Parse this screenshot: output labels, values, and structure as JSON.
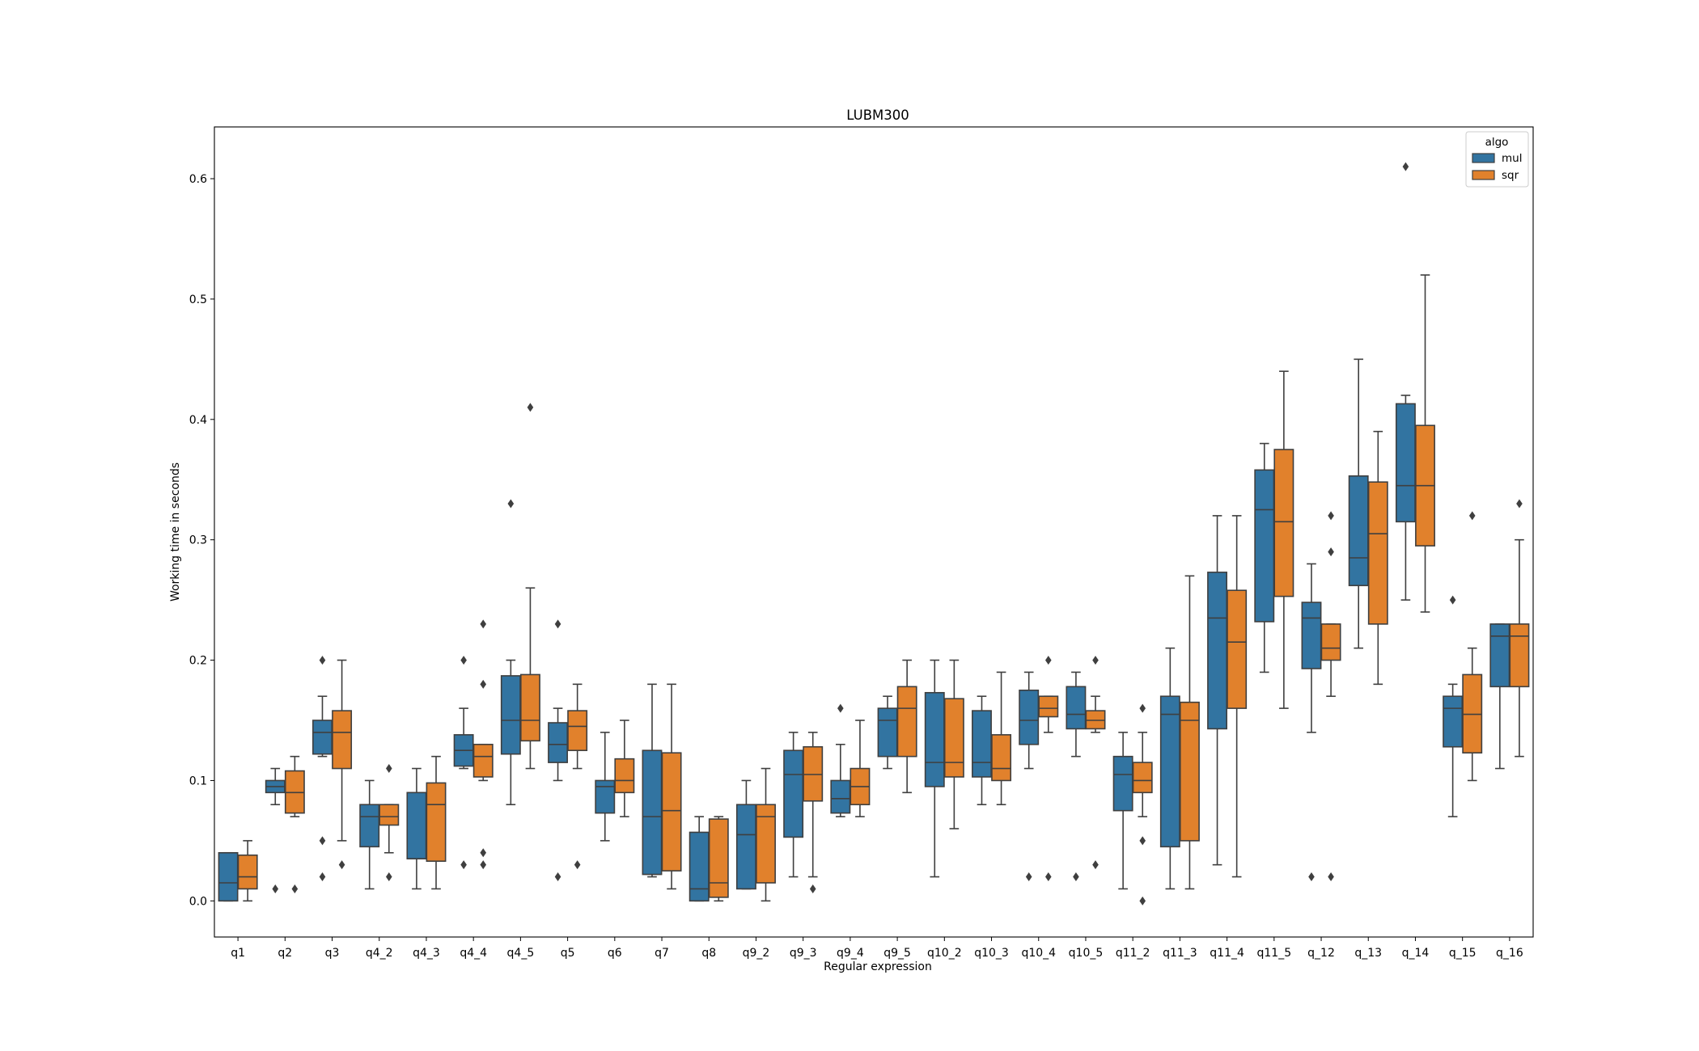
{
  "chart_data": {
    "type": "box",
    "title": "LUBM300",
    "xlabel": "Regular expression",
    "ylabel": "Working time in seconds",
    "ylim": [
      -0.03,
      0.643
    ],
    "yticks": [
      "0.0",
      "0.1",
      "0.2",
      "0.3",
      "0.4",
      "0.5",
      "0.6"
    ],
    "grid": false,
    "legend": {
      "title": "algo",
      "position": "top-right"
    },
    "categories": [
      "q1",
      "q2",
      "q3",
      "q4_2",
      "q4_3",
      "q4_4",
      "q4_5",
      "q5",
      "q6",
      "q7",
      "q8",
      "q9_2",
      "q9_3",
      "q9_4",
      "q9_5",
      "q10_2",
      "q10_3",
      "q10_4",
      "q10_5",
      "q11_2",
      "q11_3",
      "q11_4",
      "q11_5",
      "q_12",
      "q_13",
      "q_14",
      "q_15",
      "q_16"
    ],
    "series": [
      {
        "name": "mul",
        "color": "#3274a1",
        "boxes": [
          {
            "wl": 0.0,
            "q1": 0.0,
            "med": 0.015,
            "q3": 0.04,
            "wh": 0.04,
            "out": []
          },
          {
            "wl": 0.08,
            "q1": 0.09,
            "med": 0.095,
            "q3": 0.1,
            "wh": 0.11,
            "out": [
              0.01
            ]
          },
          {
            "wl": 0.12,
            "q1": 0.122,
            "med": 0.14,
            "q3": 0.15,
            "wh": 0.17,
            "out": [
              0.2,
              0.05,
              0.02
            ]
          },
          {
            "wl": 0.01,
            "q1": 0.045,
            "med": 0.07,
            "q3": 0.08,
            "wh": 0.1,
            "out": []
          },
          {
            "wl": 0.01,
            "q1": 0.035,
            "med": 0.035,
            "q3": 0.09,
            "wh": 0.11,
            "out": []
          },
          {
            "wl": 0.11,
            "q1": 0.112,
            "med": 0.125,
            "q3": 0.138,
            "wh": 0.16,
            "out": [
              0.2,
              0.03
            ]
          },
          {
            "wl": 0.08,
            "q1": 0.122,
            "med": 0.15,
            "q3": 0.187,
            "wh": 0.2,
            "out": [
              0.33
            ]
          },
          {
            "wl": 0.1,
            "q1": 0.115,
            "med": 0.13,
            "q3": 0.148,
            "wh": 0.16,
            "out": [
              0.23,
              0.02
            ]
          },
          {
            "wl": 0.05,
            "q1": 0.073,
            "med": 0.095,
            "q3": 0.1,
            "wh": 0.14,
            "out": []
          },
          {
            "wl": 0.02,
            "q1": 0.022,
            "med": 0.07,
            "q3": 0.125,
            "wh": 0.18,
            "out": []
          },
          {
            "wl": 0.0,
            "q1": 0.0,
            "med": 0.01,
            "q3": 0.057,
            "wh": 0.07,
            "out": []
          },
          {
            "wl": 0.01,
            "q1": 0.01,
            "med": 0.055,
            "q3": 0.08,
            "wh": 0.1,
            "out": []
          },
          {
            "wl": 0.02,
            "q1": 0.053,
            "med": 0.105,
            "q3": 0.125,
            "wh": 0.14,
            "out": []
          },
          {
            "wl": 0.07,
            "q1": 0.073,
            "med": 0.085,
            "q3": 0.1,
            "wh": 0.13,
            "out": [
              0.16
            ]
          },
          {
            "wl": 0.11,
            "q1": 0.12,
            "med": 0.15,
            "q3": 0.16,
            "wh": 0.17,
            "out": []
          },
          {
            "wl": 0.02,
            "q1": 0.095,
            "med": 0.115,
            "q3": 0.173,
            "wh": 0.2,
            "out": []
          },
          {
            "wl": 0.08,
            "q1": 0.103,
            "med": 0.115,
            "q3": 0.158,
            "wh": 0.17,
            "out": []
          },
          {
            "wl": 0.11,
            "q1": 0.13,
            "med": 0.15,
            "q3": 0.175,
            "wh": 0.19,
            "out": [
              0.02
            ]
          },
          {
            "wl": 0.12,
            "q1": 0.143,
            "med": 0.155,
            "q3": 0.178,
            "wh": 0.19,
            "out": [
              0.02
            ]
          },
          {
            "wl": 0.01,
            "q1": 0.075,
            "med": 0.105,
            "q3": 0.12,
            "wh": 0.14,
            "out": []
          },
          {
            "wl": 0.01,
            "q1": 0.045,
            "med": 0.155,
            "q3": 0.17,
            "wh": 0.21,
            "out": []
          },
          {
            "wl": 0.03,
            "q1": 0.143,
            "med": 0.235,
            "q3": 0.273,
            "wh": 0.32,
            "out": []
          },
          {
            "wl": 0.19,
            "q1": 0.232,
            "med": 0.325,
            "q3": 0.358,
            "wh": 0.38,
            "out": []
          },
          {
            "wl": 0.14,
            "q1": 0.193,
            "med": 0.235,
            "q3": 0.248,
            "wh": 0.28,
            "out": [
              0.02
            ]
          },
          {
            "wl": 0.21,
            "q1": 0.262,
            "med": 0.285,
            "q3": 0.353,
            "wh": 0.45,
            "out": []
          },
          {
            "wl": 0.25,
            "q1": 0.315,
            "med": 0.345,
            "q3": 0.413,
            "wh": 0.42,
            "out": [
              0.61
            ]
          },
          {
            "wl": 0.07,
            "q1": 0.128,
            "med": 0.16,
            "q3": 0.17,
            "wh": 0.18,
            "out": [
              0.25
            ]
          },
          {
            "wl": 0.11,
            "q1": 0.178,
            "med": 0.22,
            "q3": 0.23,
            "wh": 0.23,
            "out": []
          }
        ]
      },
      {
        "name": "sqr",
        "color": "#e1812c",
        "boxes": [
          {
            "wl": 0.0,
            "q1": 0.01,
            "med": 0.02,
            "q3": 0.038,
            "wh": 0.05,
            "out": []
          },
          {
            "wl": 0.07,
            "q1": 0.073,
            "med": 0.09,
            "q3": 0.108,
            "wh": 0.12,
            "out": [
              0.01
            ]
          },
          {
            "wl": 0.05,
            "q1": 0.11,
            "med": 0.14,
            "q3": 0.158,
            "wh": 0.2,
            "out": [
              0.03
            ]
          },
          {
            "wl": 0.04,
            "q1": 0.063,
            "med": 0.07,
            "q3": 0.08,
            "wh": 0.08,
            "out": [
              0.11,
              0.02
            ]
          },
          {
            "wl": 0.01,
            "q1": 0.033,
            "med": 0.08,
            "q3": 0.098,
            "wh": 0.12,
            "out": []
          },
          {
            "wl": 0.1,
            "q1": 0.103,
            "med": 0.12,
            "q3": 0.13,
            "wh": 0.13,
            "out": [
              0.23,
              0.18,
              0.04,
              0.03
            ]
          },
          {
            "wl": 0.11,
            "q1": 0.133,
            "med": 0.15,
            "q3": 0.188,
            "wh": 0.26,
            "out": [
              0.41
            ]
          },
          {
            "wl": 0.11,
            "q1": 0.125,
            "med": 0.145,
            "q3": 0.158,
            "wh": 0.18,
            "out": [
              0.03
            ]
          },
          {
            "wl": 0.07,
            "q1": 0.09,
            "med": 0.1,
            "q3": 0.118,
            "wh": 0.15,
            "out": []
          },
          {
            "wl": 0.01,
            "q1": 0.025,
            "med": 0.075,
            "q3": 0.123,
            "wh": 0.18,
            "out": []
          },
          {
            "wl": 0.0,
            "q1": 0.003,
            "med": 0.015,
            "q3": 0.068,
            "wh": 0.07,
            "out": []
          },
          {
            "wl": 0.0,
            "q1": 0.015,
            "med": 0.07,
            "q3": 0.08,
            "wh": 0.11,
            "out": []
          },
          {
            "wl": 0.02,
            "q1": 0.083,
            "med": 0.105,
            "q3": 0.128,
            "wh": 0.14,
            "out": [
              0.01
            ]
          },
          {
            "wl": 0.07,
            "q1": 0.08,
            "med": 0.095,
            "q3": 0.11,
            "wh": 0.15,
            "out": []
          },
          {
            "wl": 0.09,
            "q1": 0.12,
            "med": 0.16,
            "q3": 0.178,
            "wh": 0.2,
            "out": []
          },
          {
            "wl": 0.06,
            "q1": 0.103,
            "med": 0.115,
            "q3": 0.168,
            "wh": 0.2,
            "out": []
          },
          {
            "wl": 0.08,
            "q1": 0.1,
            "med": 0.11,
            "q3": 0.138,
            "wh": 0.19,
            "out": []
          },
          {
            "wl": 0.14,
            "q1": 0.153,
            "med": 0.16,
            "q3": 0.17,
            "wh": 0.17,
            "out": [
              0.2,
              0.02
            ]
          },
          {
            "wl": 0.14,
            "q1": 0.143,
            "med": 0.15,
            "q3": 0.158,
            "wh": 0.17,
            "out": [
              0.2,
              0.03
            ]
          },
          {
            "wl": 0.07,
            "q1": 0.09,
            "med": 0.1,
            "q3": 0.115,
            "wh": 0.14,
            "out": [
              0.16,
              0.05,
              0.0
            ]
          },
          {
            "wl": 0.01,
            "q1": 0.05,
            "med": 0.15,
            "q3": 0.165,
            "wh": 0.27,
            "out": []
          },
          {
            "wl": 0.02,
            "q1": 0.16,
            "med": 0.215,
            "q3": 0.258,
            "wh": 0.32,
            "out": []
          },
          {
            "wl": 0.16,
            "q1": 0.253,
            "med": 0.315,
            "q3": 0.375,
            "wh": 0.44,
            "out": []
          },
          {
            "wl": 0.17,
            "q1": 0.2,
            "med": 0.21,
            "q3": 0.23,
            "wh": 0.23,
            "out": [
              0.32,
              0.29,
              0.02
            ]
          },
          {
            "wl": 0.18,
            "q1": 0.23,
            "med": 0.305,
            "q3": 0.348,
            "wh": 0.39,
            "out": []
          },
          {
            "wl": 0.24,
            "q1": 0.295,
            "med": 0.345,
            "q3": 0.395,
            "wh": 0.52,
            "out": []
          },
          {
            "wl": 0.1,
            "q1": 0.123,
            "med": 0.155,
            "q3": 0.188,
            "wh": 0.21,
            "out": [
              0.32
            ]
          },
          {
            "wl": 0.12,
            "q1": 0.178,
            "med": 0.22,
            "q3": 0.23,
            "wh": 0.3,
            "out": [
              0.33
            ]
          }
        ]
      }
    ]
  }
}
